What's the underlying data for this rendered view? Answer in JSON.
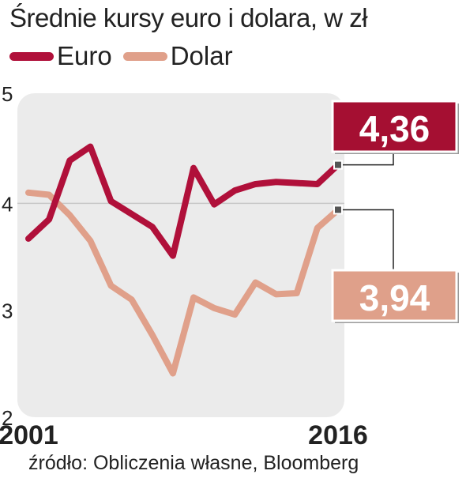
{
  "chart_data": {
    "type": "line",
    "title": "Średnie kursy euro i dolara, w zł",
    "x": [
      2001,
      2002,
      2003,
      2004,
      2005,
      2006,
      2007,
      2008,
      2009,
      2010,
      2011,
      2012,
      2013,
      2014,
      2015,
      2016
    ],
    "x_tick_labels": [
      "2001",
      "2016"
    ],
    "ylim": [
      2,
      5
    ],
    "y_ticks": [
      "2",
      "3",
      "4",
      "5"
    ],
    "grid_lines": [
      4
    ],
    "legend_placement": "top-left",
    "series": [
      {
        "name": "Euro",
        "color": "#b0103a",
        "values": [
          3.67,
          3.85,
          4.4,
          4.53,
          4.02,
          3.9,
          3.78,
          3.51,
          4.33,
          3.99,
          4.12,
          4.18,
          4.2,
          4.19,
          4.18,
          4.36
        ],
        "end_label": "4,36",
        "end_label_bg": "#a50f32"
      },
      {
        "name": "Dolar",
        "color": "#e0a08a",
        "values": [
          4.1,
          4.08,
          3.89,
          3.65,
          3.23,
          3.1,
          2.77,
          2.41,
          3.12,
          3.02,
          2.96,
          3.26,
          3.15,
          3.16,
          3.77,
          3.94
        ],
        "end_label": "3,94",
        "end_label_bg": "#dfa08a"
      }
    ],
    "source": "źródło: Obliczenia własne, Bloomberg"
  }
}
